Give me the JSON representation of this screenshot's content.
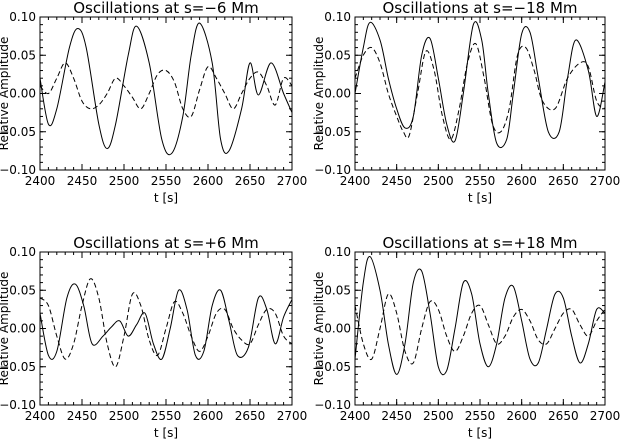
{
  "chart_data": [
    {
      "type": "line",
      "title": "Oscillations at s=−6 Mm",
      "xlabel": "t [s]",
      "ylabel": "Relative Amplitude",
      "xlim": [
        2400,
        2700
      ],
      "ylim": [
        -0.1,
        0.1
      ],
      "xticks": [
        "2400",
        "2450",
        "2500",
        "2550",
        "2600",
        "2650",
        "2700"
      ],
      "yticks": [
        "0.10",
        "0.05",
        "0.00",
        "−0.05",
        "−0.10"
      ],
      "series": [
        {
          "style": "solid",
          "x": [
            2400,
            2410,
            2420,
            2435,
            2445,
            2455,
            2470,
            2480,
            2490,
            2505,
            2515,
            2530,
            2545,
            2557,
            2570,
            2580,
            2590,
            2605,
            2615,
            2625,
            2640,
            2650,
            2660,
            2675,
            2690,
            2700
          ],
          "y": [
            0.02,
            -0.04,
            -0.02,
            0.06,
            0.085,
            0.06,
            -0.04,
            -0.072,
            -0.04,
            0.05,
            0.088,
            0.04,
            -0.06,
            -0.078,
            -0.03,
            0.05,
            0.092,
            0.04,
            -0.06,
            -0.075,
            -0.02,
            0.04,
            -0.002,
            0.04,
            0.0,
            -0.025
          ]
        },
        {
          "style": "dashed",
          "x": [
            2400,
            2410,
            2420,
            2430,
            2440,
            2450,
            2460,
            2470,
            2480,
            2490,
            2500,
            2510,
            2520,
            2530,
            2540,
            2550,
            2560,
            2570,
            2580,
            2590,
            2600,
            2610,
            2620,
            2630,
            2640,
            2650,
            2660,
            2670,
            2680,
            2690,
            2700
          ],
          "y": [
            0.01,
            0.0,
            0.02,
            0.04,
            0.02,
            -0.01,
            -0.02,
            -0.015,
            0.0,
            0.02,
            0.01,
            -0.005,
            -0.02,
            0.0,
            0.025,
            0.03,
            0.015,
            -0.02,
            -0.03,
            0.005,
            0.035,
            0.02,
            0.0,
            -0.02,
            0.0,
            0.02,
            0.028,
            0.01,
            -0.015,
            0.02,
            0.01
          ]
        }
      ]
    },
    {
      "type": "line",
      "title": "Oscillations at s=−18 Mm",
      "xlabel": "t [s]",
      "ylabel": "Relative Amplitude",
      "xlim": [
        2400,
        2700
      ],
      "ylim": [
        -0.1,
        0.1
      ],
      "xticks": [
        "2400",
        "2450",
        "2500",
        "2550",
        "2600",
        "2650",
        "2700"
      ],
      "yticks": [
        "0.10",
        "0.05",
        "0.00",
        "−0.05",
        "−0.10"
      ],
      "series": [
        {
          "style": "solid",
          "x": [
            2400,
            2410,
            2418,
            2430,
            2440,
            2450,
            2460,
            2470,
            2480,
            2490,
            2500,
            2510,
            2520,
            2530,
            2542,
            2552,
            2560,
            2570,
            2582,
            2590,
            2600,
            2610,
            2620,
            2632,
            2645,
            2655,
            2665,
            2680,
            2690,
            2700
          ],
          "y": [
            0.0,
            0.06,
            0.093,
            0.07,
            0.02,
            -0.02,
            -0.045,
            -0.03,
            0.05,
            0.072,
            0.02,
            -0.04,
            -0.062,
            0.0,
            0.09,
            0.07,
            0.0,
            -0.065,
            -0.06,
            0.0,
            0.078,
            0.08,
            0.02,
            -0.05,
            -0.05,
            0.02,
            0.07,
            0.03,
            -0.03,
            0.015
          ]
        },
        {
          "style": "dashed",
          "x": [
            2400,
            2410,
            2420,
            2430,
            2440,
            2450,
            2458,
            2465,
            2475,
            2485,
            2495,
            2505,
            2515,
            2525,
            2535,
            2545,
            2555,
            2565,
            2575,
            2585,
            2595,
            2605,
            2615,
            2625,
            2640,
            2655,
            2670,
            2680,
            2690,
            2700
          ],
          "y": [
            0.02,
            0.05,
            0.06,
            0.04,
            0.0,
            -0.03,
            -0.05,
            -0.055,
            0.0,
            0.055,
            0.03,
            -0.03,
            -0.06,
            -0.02,
            0.04,
            0.065,
            0.02,
            -0.04,
            -0.05,
            -0.02,
            0.05,
            0.06,
            0.03,
            -0.01,
            -0.02,
            0.02,
            0.04,
            0.035,
            -0.01,
            -0.02
          ]
        }
      ]
    },
    {
      "type": "line",
      "title": "Oscillations at s=+6 Mm",
      "xlabel": "t [s]",
      "ylabel": "Relative Amplitude",
      "xlim": [
        2400,
        2700
      ],
      "ylim": [
        -0.1,
        0.1
      ],
      "xticks": [
        "2400",
        "2450",
        "2500",
        "2550",
        "2600",
        "2650",
        "2700"
      ],
      "yticks": [
        "0.10",
        "0.05",
        "0.00",
        "−0.05",
        "−0.10"
      ],
      "series": [
        {
          "style": "solid",
          "x": [
            2400,
            2410,
            2420,
            2432,
            2442,
            2452,
            2462,
            2475,
            2485,
            2495,
            2505,
            2515,
            2525,
            2535,
            2545,
            2555,
            2565,
            2575,
            2585,
            2595,
            2605,
            2615,
            2625,
            2635,
            2648,
            2660,
            2670,
            2680,
            2690,
            2700
          ],
          "y": [
            0.02,
            -0.035,
            -0.03,
            0.04,
            0.058,
            0.03,
            -0.02,
            -0.01,
            0.002,
            0.01,
            -0.01,
            0.005,
            0.02,
            -0.02,
            -0.04,
            0.0,
            0.05,
            0.025,
            -0.035,
            -0.03,
            0.03,
            0.05,
            0.01,
            -0.035,
            -0.025,
            0.04,
            0.025,
            -0.02,
            0.015,
            0.038
          ]
        },
        {
          "style": "dashed",
          "x": [
            2400,
            2410,
            2420,
            2430,
            2440,
            2450,
            2460,
            2470,
            2480,
            2490,
            2500,
            2510,
            2520,
            2530,
            2540,
            2550,
            2560,
            2570,
            2580,
            2590,
            2600,
            2610,
            2620,
            2630,
            2640,
            2650,
            2660,
            2670,
            2680,
            2690,
            2700
          ],
          "y": [
            0.04,
            0.03,
            -0.01,
            -0.04,
            -0.02,
            0.03,
            0.065,
            0.04,
            -0.02,
            -0.05,
            -0.01,
            0.045,
            0.03,
            -0.015,
            -0.035,
            0.0,
            0.035,
            0.02,
            -0.01,
            -0.03,
            -0.01,
            0.02,
            0.025,
            0.0,
            -0.015,
            -0.02,
            0.005,
            0.025,
            0.02,
            -0.01,
            -0.02
          ]
        }
      ]
    },
    {
      "type": "line",
      "title": "Oscillations at s=+18 Mm",
      "xlabel": "t [s]",
      "ylabel": "Relative Amplitude",
      "xlim": [
        2400,
        2700
      ],
      "ylim": [
        -0.1,
        0.1
      ],
      "xticks": [
        "2400",
        "2450",
        "2500",
        "2550",
        "2600",
        "2650",
        "2700"
      ],
      "yticks": [
        "0.10",
        "0.05",
        "0.00",
        "−0.05",
        "−0.10"
      ],
      "series": [
        {
          "style": "solid",
          "x": [
            2400,
            2410,
            2418,
            2430,
            2440,
            2450,
            2460,
            2470,
            2480,
            2490,
            2500,
            2510,
            2520,
            2530,
            2540,
            2550,
            2560,
            2570,
            2580,
            2590,
            2600,
            2610,
            2620,
            2630,
            2640,
            2650,
            2660,
            2670,
            2680,
            2690,
            2700
          ],
          "y": [
            -0.04,
            0.06,
            0.094,
            0.05,
            -0.02,
            -0.06,
            -0.02,
            0.06,
            0.075,
            0.02,
            -0.05,
            -0.055,
            0.0,
            0.06,
            0.045,
            -0.02,
            -0.05,
            -0.02,
            0.04,
            0.055,
            0.01,
            -0.04,
            -0.045,
            0.0,
            0.045,
            0.04,
            -0.01,
            -0.045,
            -0.02,
            0.025,
            0.02
          ]
        },
        {
          "style": "dashed",
          "x": [
            2400,
            2410,
            2420,
            2430,
            2440,
            2450,
            2460,
            2470,
            2480,
            2490,
            2500,
            2510,
            2520,
            2530,
            2540,
            2550,
            2560,
            2570,
            2580,
            2590,
            2600,
            2610,
            2620,
            2630,
            2640,
            2650,
            2660,
            2670,
            2680,
            2690,
            2700
          ],
          "y": [
            0.03,
            -0.02,
            -0.04,
            0.0,
            0.045,
            0.02,
            -0.03,
            -0.045,
            0.0,
            0.035,
            0.025,
            -0.01,
            -0.03,
            -0.01,
            0.02,
            0.03,
            0.005,
            -0.02,
            -0.01,
            0.015,
            0.025,
            0.01,
            -0.015,
            -0.02,
            0.0,
            0.02,
            0.025,
            0.005,
            -0.01,
            0.01,
            0.025
          ]
        }
      ]
    }
  ]
}
